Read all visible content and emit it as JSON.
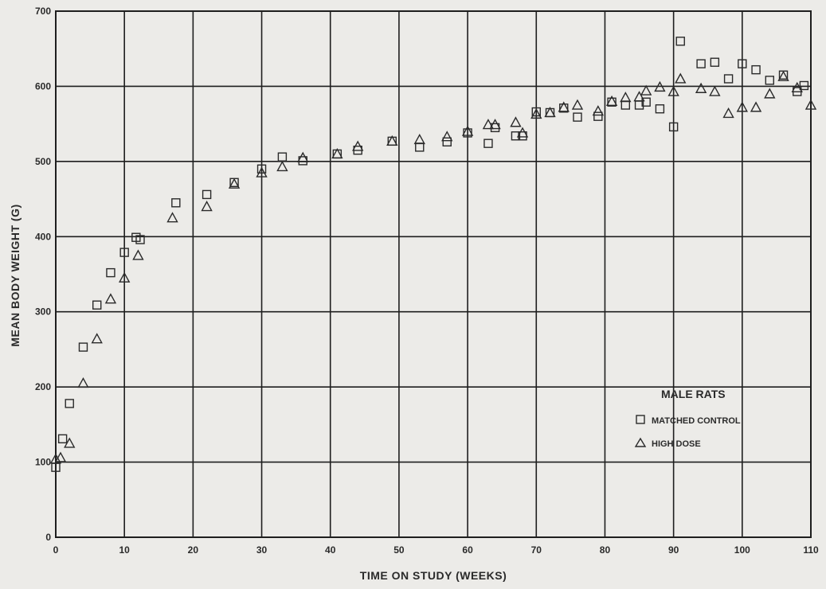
{
  "chart_data": {
    "type": "scatter",
    "xlabel": "TIME ON STUDY (WEEKS)",
    "ylabel": "MEAN BODY WEIGHT (G)",
    "xlim": [
      0,
      110
    ],
    "ylim": [
      0,
      700
    ],
    "xticks": [
      "0",
      "10",
      "20",
      "30",
      "40",
      "50",
      "60",
      "70",
      "80",
      "90",
      "100",
      "110"
    ],
    "yticks": [
      "0",
      "100",
      "200",
      "300",
      "400",
      "500",
      "600",
      "700"
    ],
    "grid": true,
    "legend": {
      "title": "MALE RATS",
      "placement": "bottom-right"
    },
    "series": [
      {
        "name": "MATCHED CONTROL",
        "marker": "square",
        "x": [
          0,
          1,
          2,
          4,
          6,
          8,
          10,
          11.7,
          12.3,
          17.5,
          22,
          26,
          30,
          33,
          36,
          41,
          44,
          49,
          53,
          57,
          60,
          63,
          64,
          67,
          68,
          70,
          72,
          74,
          76,
          79,
          81,
          83,
          85,
          86,
          88,
          90,
          91,
          94,
          96,
          98,
          100,
          102,
          104,
          106,
          108,
          109
        ],
        "y": [
          93,
          131,
          178,
          253,
          309,
          352,
          379,
          399,
          396,
          445,
          456,
          472,
          490,
          506,
          501,
          510,
          515,
          527,
          519,
          526,
          538,
          524,
          545,
          534,
          534,
          566,
          565,
          571,
          559,
          560,
          579,
          575,
          575,
          579,
          570,
          546,
          660,
          630,
          632,
          610,
          630,
          622,
          608,
          615,
          593,
          601
        ]
      },
      {
        "name": "HIGH DOSE",
        "marker": "triangle",
        "x": [
          0,
          0.7,
          2,
          4,
          6,
          8,
          10,
          12,
          17,
          22,
          26,
          30,
          33,
          36,
          41,
          44,
          49,
          53,
          57,
          60,
          63,
          64,
          67,
          68,
          70,
          72,
          74,
          76,
          79,
          81,
          83,
          85,
          86,
          88,
          90,
          91,
          94,
          96,
          98,
          100,
          102,
          104,
          106,
          108,
          110
        ],
        "y": [
          104,
          106,
          125,
          205,
          264,
          317,
          345,
          375,
          425,
          440,
          470,
          485,
          493,
          505,
          510,
          520,
          527,
          529,
          533,
          540,
          549,
          549,
          552,
          538,
          563,
          565,
          572,
          575,
          567,
          580,
          585,
          586,
          594,
          599,
          593,
          610,
          597,
          593,
          564,
          572,
          572,
          590,
          613,
          598,
          575
        ]
      }
    ]
  }
}
